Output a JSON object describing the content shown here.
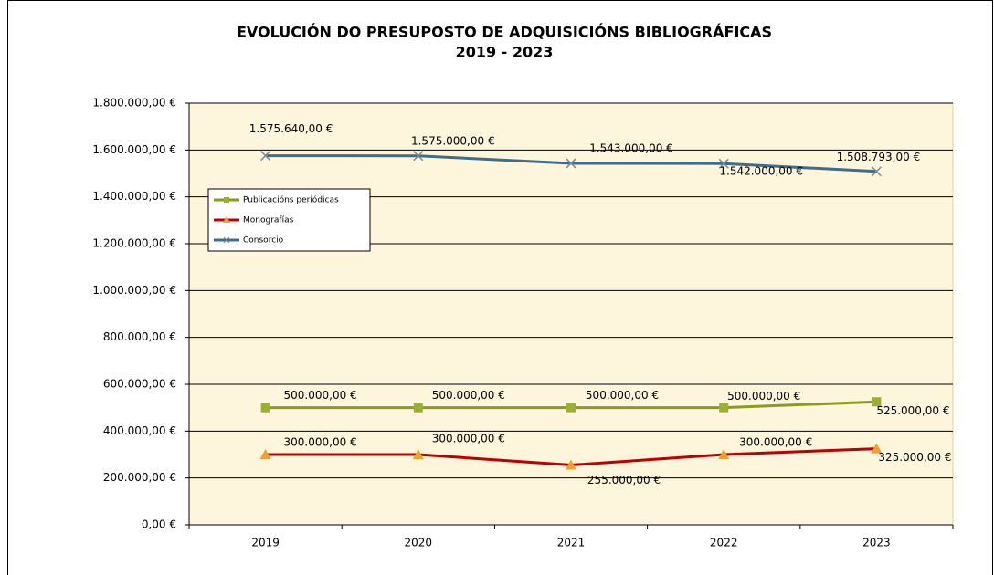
{
  "chart_data": {
    "type": "line",
    "title": "EVOLUCIÓN DO PRESUPOSTO DE ADQUISICIÓNS BIBLIOGRÁFICAS",
    "subtitle": "2019 - 2023",
    "categories": [
      "2019",
      "2020",
      "2021",
      "2022",
      "2023"
    ],
    "series": [
      {
        "name": "Publicacións periódicas",
        "color": "#8a9a22",
        "marker": "square",
        "marker_color": "#9bb030",
        "values": [
          500000,
          500000,
          500000,
          500000,
          525000
        ],
        "value_labels": [
          "500.000,00 €",
          "500.000,00 €",
          "500.000,00 €",
          "500.000,00 €",
          "525.000,00 €"
        ]
      },
      {
        "name": "Monografías",
        "color": "#c00000",
        "marker": "triangle",
        "marker_color": "#f0a030",
        "values": [
          300000,
          300000,
          255000,
          300000,
          325000
        ],
        "value_labels": [
          "300.000,00 €",
          "300.000,00 €",
          "255.000,00 €",
          "300.000,00 €",
          "325.000,00 €"
        ]
      },
      {
        "name": "Consorcio",
        "color": "#3e6d8c",
        "marker": "x",
        "marker_color": "#7a8a99",
        "values": [
          1575640,
          1575000,
          1543000,
          1542000,
          1508793
        ],
        "value_labels": [
          "1.575.640,00 €",
          "1.575.000,00 €",
          "1.543.000,00 €",
          "1.542.000,00 €",
          "1.508.793,00 €"
        ]
      }
    ],
    "ylim": [
      0,
      1800000
    ],
    "yticks": [
      {
        "value": 0,
        "label": "0,00 €"
      },
      {
        "value": 200000,
        "label": "200.000,00 €"
      },
      {
        "value": 400000,
        "label": "400.000,00 €"
      },
      {
        "value": 600000,
        "label": "600.000,00 €"
      },
      {
        "value": 800000,
        "label": "800.000,00 €"
      },
      {
        "value": 1000000,
        "label": "1.000.000,00 €"
      },
      {
        "value": 1200000,
        "label": "1.200.000,00 €"
      },
      {
        "value": 1400000,
        "label": "1.400.000,00 €"
      },
      {
        "value": 1600000,
        "label": "1.600.000,00 €"
      },
      {
        "value": 1800000,
        "label": "1.800.000,00 €"
      }
    ],
    "grid": true,
    "legend": "left"
  }
}
